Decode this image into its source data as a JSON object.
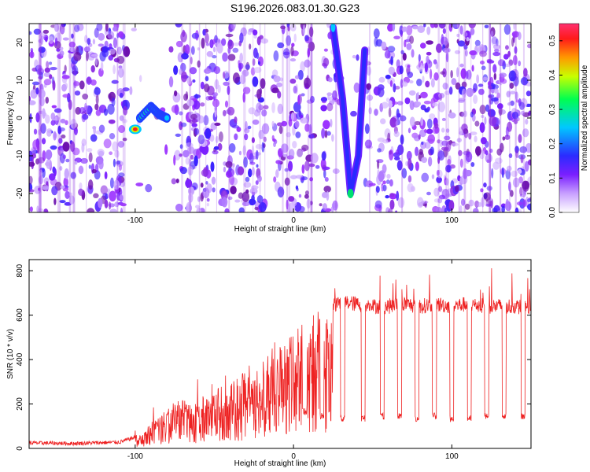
{
  "page": {
    "title": "S196.2026.083.01.30.G23"
  },
  "chart_data": [
    {
      "type": "heatmap",
      "xlabel": "Height of straight line (km)",
      "ylabel": "Frequency (Hz)",
      "xlim": [
        -167,
        150
      ],
      "ylim": [
        -25,
        25
      ],
      "x_ticks": [
        -100,
        0,
        100
      ],
      "y_ticks": [
        -20,
        -10,
        0,
        10,
        20
      ],
      "colorbar": {
        "label": "Normalized spectral amplitude",
        "range": [
          0,
          0.55
        ],
        "ticks": [
          0.0,
          0.1,
          0.2,
          0.3,
          0.4,
          0.5
        ],
        "colors": [
          "#ffffff",
          "#9b30ff",
          "#1f1fff",
          "#00c8ff",
          "#00ff60",
          "#c8ff00",
          "#ff9900",
          "#ff0040",
          "#ff3366"
        ]
      },
      "features": [
        {
          "name": "hotspot",
          "x": -100,
          "y": -3,
          "value": 0.55
        },
        {
          "name": "arc",
          "points": [
            [
              -97,
              0
            ],
            [
              -90,
              3
            ],
            [
              -85,
              1
            ],
            [
              -80,
              0
            ]
          ],
          "value": 0.25
        },
        {
          "name": "vee",
          "points": [
            [
              25,
              24
            ],
            [
              31,
              5
            ],
            [
              36,
              -20
            ],
            [
              41,
              -10
            ],
            [
              45,
              18
            ]
          ],
          "value": 0.22
        }
      ]
    },
    {
      "type": "line",
      "xlabel": "Height of straight line (km)",
      "ylabel": "SNR (10 * v/v)",
      "xlim": [
        -167,
        150
      ],
      "ylim": [
        0,
        850
      ],
      "x_ticks": [
        -100,
        0,
        100
      ],
      "y_ticks": [
        0,
        200,
        400,
        600,
        800
      ],
      "series": [
        {
          "color": "#ee2222",
          "x": [
            -167,
            -140,
            -110,
            -100,
            -95,
            -90,
            -85,
            -80,
            -75,
            -70,
            -65,
            -60,
            -55,
            -50,
            -45,
            -40,
            -35,
            -30,
            -25,
            -20,
            -15,
            -10,
            -5,
            0,
            5,
            10,
            15,
            20,
            25,
            30,
            40,
            50,
            60,
            70,
            80,
            90,
            100,
            110,
            120,
            130,
            140,
            150
          ],
          "y": [
            25,
            22,
            28,
            50,
            80,
            110,
            150,
            180,
            210,
            220,
            200,
            240,
            230,
            260,
            280,
            290,
            320,
            350,
            380,
            400,
            430,
            460,
            480,
            520,
            560,
            590,
            620,
            640,
            650,
            660,
            650,
            640,
            640,
            650,
            640,
            650,
            640,
            650,
            640,
            640,
            640,
            630
          ]
        }
      ],
      "dips": [
        {
          "x": 7,
          "y": 150
        },
        {
          "x": 18,
          "y": 130
        },
        {
          "x": 31,
          "y": 120
        },
        {
          "x": 44,
          "y": 120
        },
        {
          "x": 56,
          "y": 130
        },
        {
          "x": 67,
          "y": 130
        },
        {
          "x": 78,
          "y": 120
        },
        {
          "x": 89,
          "y": 130
        },
        {
          "x": 100,
          "y": 120
        },
        {
          "x": 111,
          "y": 120
        },
        {
          "x": 122,
          "y": 130
        },
        {
          "x": 133,
          "y": 130
        },
        {
          "x": 145,
          "y": 130
        }
      ]
    }
  ]
}
